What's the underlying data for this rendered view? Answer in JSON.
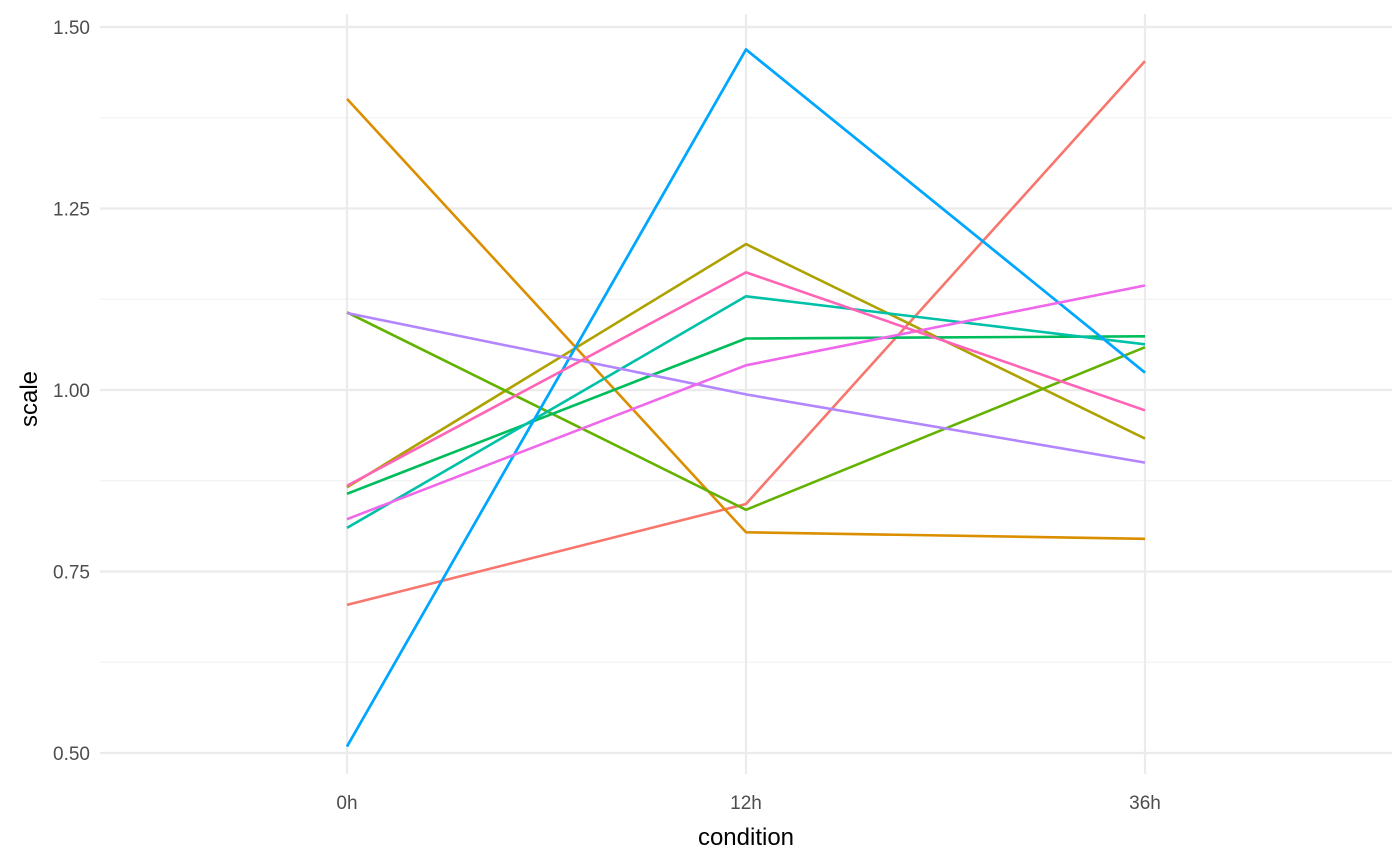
{
  "chart_data": {
    "type": "line",
    "xlabel": "condition",
    "ylabel": "scale",
    "categories": [
      "0h",
      "12h",
      "36h"
    ],
    "ylim": [
      0.48,
      1.52
    ],
    "y_ticks": [
      0.5,
      0.75,
      1.0,
      1.25,
      1.5
    ],
    "y_tick_labels": [
      "0.50",
      "0.75",
      "1.00",
      "1.25",
      "1.50"
    ],
    "y_minor_ticks": [
      0.625,
      0.875,
      1.125,
      1.375
    ],
    "grid": true,
    "legend": "none",
    "series": [
      {
        "color": "#F8766D",
        "values": [
          0.704,
          0.843,
          1.453
        ]
      },
      {
        "color": "#DB8E00",
        "values": [
          1.401,
          0.804,
          0.795
        ]
      },
      {
        "color": "#AEA200",
        "values": [
          0.866,
          1.201,
          0.933
        ]
      },
      {
        "color": "#64B200",
        "values": [
          1.107,
          0.835,
          1.059
        ]
      },
      {
        "color": "#00BD5C",
        "values": [
          0.857,
          1.071,
          1.074
        ]
      },
      {
        "color": "#00C1A7",
        "values": [
          0.81,
          1.129,
          1.063
        ]
      },
      {
        "color": "#00BADE",
        "values": [
          0.509,
          1.469,
          1.024
        ]
      },
      {
        "color": "#00A6FF",
        "values": [
          0.509,
          1.469,
          1.024
        ]
      },
      {
        "color": "#B385FF",
        "values": [
          1.106,
          0.994,
          0.9
        ]
      },
      {
        "color": "#EF67EB",
        "values": [
          0.822,
          1.034,
          1.144
        ]
      },
      {
        "color": "#FF63B6",
        "values": [
          0.868,
          1.162,
          0.972
        ]
      }
    ]
  }
}
